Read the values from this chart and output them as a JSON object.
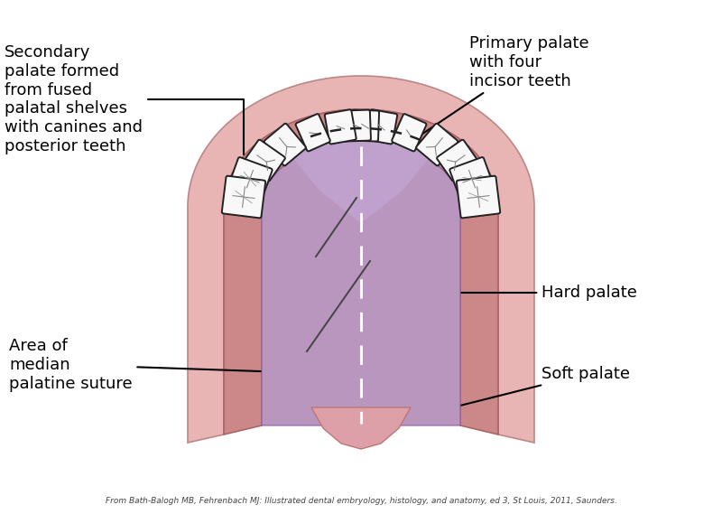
{
  "bg_color": "#ffffff",
  "outer_gum_color": "#e8b4b4",
  "inner_gum_color": "#cc8888",
  "hard_palate_color": "#b896be",
  "hard_palate_inner": "#c8a8d0",
  "primary_palate_color": "#c0a0cc",
  "soft_palate_color": "#dda0a8",
  "tooth_fill": "#f8f8f8",
  "tooth_outline": "#222222",
  "label_secondary": "Secondary\npalate formed\nfrom fused\npalatal shelves\nwith canines and\nposterior teeth",
  "label_primary": "Primary palate\nwith four\nincisor teeth",
  "label_hard": "Hard palate",
  "label_soft": "Soft palate",
  "label_median": "Area of\nmedian\npalatine suture",
  "citation": "From Bath-Balogh MB, Fehrenbach MJ: Illustrated dental embryology, histology, and anatomy, ed 3, St Louis, 2011, Saunders.",
  "figsize": [
    8.0,
    5.69
  ]
}
